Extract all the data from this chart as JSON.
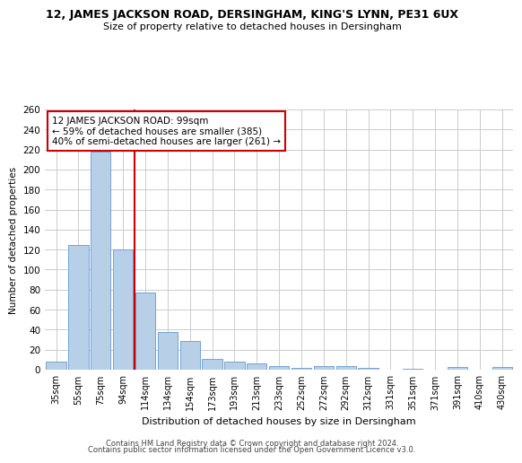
{
  "title": "12, JAMES JACKSON ROAD, DERSINGHAM, KING'S LYNN, PE31 6UX",
  "subtitle": "Size of property relative to detached houses in Dersingham",
  "xlabel": "Distribution of detached houses by size in Dersingham",
  "ylabel": "Number of detached properties",
  "categories": [
    "35sqm",
    "55sqm",
    "75sqm",
    "94sqm",
    "114sqm",
    "134sqm",
    "154sqm",
    "173sqm",
    "193sqm",
    "213sqm",
    "233sqm",
    "252sqm",
    "272sqm",
    "292sqm",
    "312sqm",
    "331sqm",
    "351sqm",
    "371sqm",
    "391sqm",
    "410sqm",
    "430sqm"
  ],
  "values": [
    8,
    125,
    218,
    120,
    77,
    38,
    29,
    11,
    8,
    6,
    4,
    2,
    4,
    4,
    2,
    0,
    1,
    0,
    3,
    0,
    3
  ],
  "bar_color": "#b8cfe8",
  "bar_edge_color": "#6699cc",
  "vline_index": 3,
  "vline_color": "#cc0000",
  "annotation_text": "12 JAMES JACKSON ROAD: 99sqm\n← 59% of detached houses are smaller (385)\n40% of semi-detached houses are larger (261) →",
  "annotation_box_color": "#ffffff",
  "annotation_box_edge": "#cc0000",
  "ylim": [
    0,
    260
  ],
  "yticks": [
    0,
    20,
    40,
    60,
    80,
    100,
    120,
    140,
    160,
    180,
    200,
    220,
    240,
    260
  ],
  "footer1": "Contains HM Land Registry data © Crown copyright and database right 2024.",
  "footer2": "Contains public sector information licensed under the Open Government Licence v3.0.",
  "background_color": "#ffffff",
  "grid_color": "#cccccc"
}
